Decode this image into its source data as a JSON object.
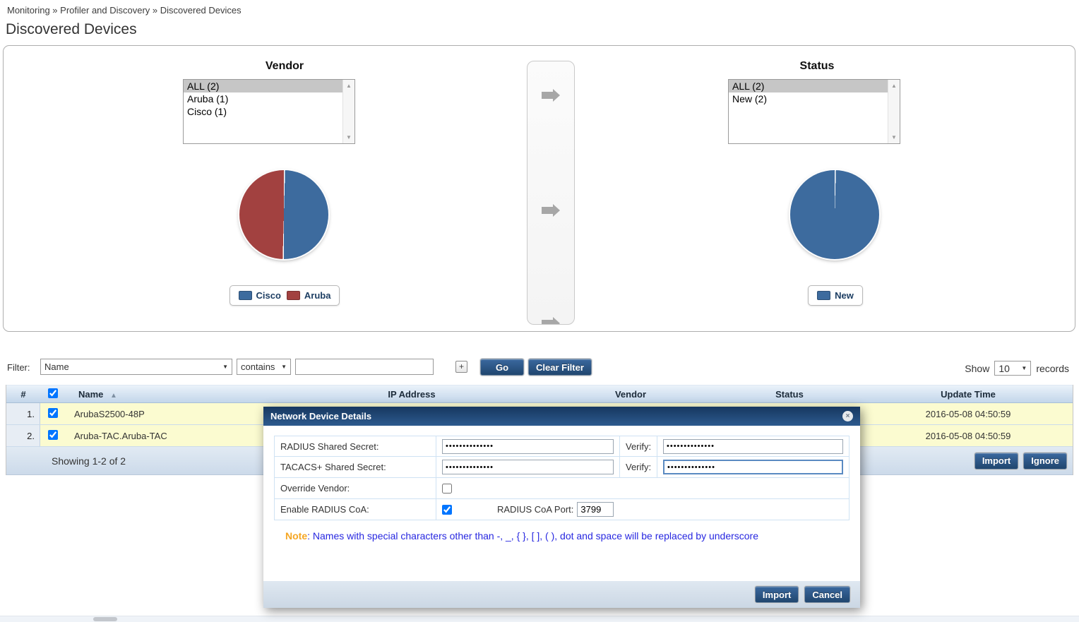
{
  "breadcrumb": "Monitoring » Profiler and Discovery » Discovered Devices",
  "page_title": "Discovered Devices",
  "vendor_panel": {
    "title": "Vendor",
    "items": [
      {
        "label": "ALL (2)",
        "selected": true
      },
      {
        "label": "Aruba (1)",
        "selected": false
      },
      {
        "label": "Cisco (1)",
        "selected": false
      }
    ],
    "legend": [
      {
        "label": "Cisco"
      },
      {
        "label": "Aruba"
      }
    ]
  },
  "status_panel": {
    "title": "Status",
    "items": [
      {
        "label": "ALL (2)",
        "selected": true
      },
      {
        "label": "New (2)",
        "selected": false
      }
    ],
    "legend": [
      {
        "label": "New"
      }
    ]
  },
  "chart_data": [
    {
      "type": "pie",
      "title": "Vendor",
      "labels": [
        "Cisco",
        "Aruba"
      ],
      "values": [
        1,
        1
      ],
      "colors": [
        "#3d6b9e",
        "#a24140"
      ],
      "legend_position": "bottom"
    },
    {
      "type": "pie",
      "title": "Status",
      "labels": [
        "New"
      ],
      "values": [
        2
      ],
      "colors": [
        "#3d6b9e"
      ],
      "legend_position": "bottom"
    }
  ],
  "filter_bar": {
    "label": "Filter:",
    "field_selected": "Name",
    "operator_selected": "contains",
    "value": "",
    "add_button": "+",
    "go_button": "Go",
    "clear_button": "Clear Filter",
    "show_label": "Show",
    "show_value": "10",
    "records_label": "records",
    "caret": "▼"
  },
  "table": {
    "header_checked": "checked",
    "headers": {
      "num": "#",
      "name": "Name",
      "sort_icon": "▲",
      "ip": "IP Address",
      "vendor": "Vendor",
      "status": "Status",
      "update_time": "Update Time"
    },
    "rows": [
      {
        "num": "1.",
        "checked": "checked",
        "name": "ArubaS2500-48P",
        "update_time": "2016-05-08 04:50:59"
      },
      {
        "num": "2.",
        "checked": "checked",
        "name": "Aruba-TAC.Aruba-TAC",
        "update_time": "2016-05-08 04:50:59"
      }
    ],
    "footer": {
      "showing": "Showing 1-2 of 2",
      "import_button": "Import",
      "ignore_button": "Ignore"
    }
  },
  "modal": {
    "title": "Network Device Details",
    "close_icon": "×",
    "radius_row": {
      "label": "RADIUS Shared Secret:",
      "value": "••••••••••••••",
      "verify_label": "Verify:",
      "verify_value": "••••••••••••••"
    },
    "tacacs_row": {
      "label": "TACACS+ Shared Secret:",
      "value": "••••••••••••••",
      "verify_label": "Verify:",
      "verify_value": "••••••••••••••"
    },
    "override_row": {
      "label": "Override Vendor:"
    },
    "coa_row": {
      "label": "Enable RADIUS CoA:",
      "checked": "checked",
      "port_label": "RADIUS CoA Port:",
      "port_value": "3799"
    },
    "note": {
      "prefix": "Note",
      "body": ": Names with special characters other than -, _, { }, [ ], ( ), dot and space will be replaced by underscore"
    },
    "import_button": "Import",
    "cancel_button": "Cancel"
  }
}
